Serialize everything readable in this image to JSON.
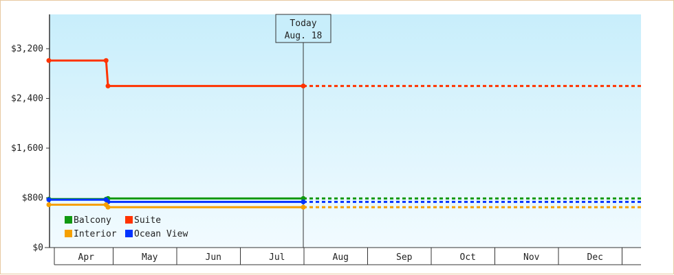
{
  "chart_data": {
    "type": "line",
    "title": "",
    "xlabel": "",
    "ylabel": "",
    "ylim": [
      0,
      4000
    ],
    "y_ticks": [
      {
        "value": 0,
        "label": "$0"
      },
      {
        "value": 800,
        "label": "$800"
      },
      {
        "value": 1600,
        "label": "$1,600"
      },
      {
        "value": 2400,
        "label": "$2,400"
      },
      {
        "value": 3200,
        "label": "$3,200"
      }
    ],
    "x_ticks": [
      "Apr",
      "May",
      "Jun",
      "Jul",
      "Aug",
      "Sep",
      "Oct",
      "Nov",
      "Dec"
    ],
    "today": {
      "line1": "Today",
      "line2": "Aug. 18",
      "month_pos": 4.0
    },
    "series": [
      {
        "name": "Suite",
        "color": "#ff3300",
        "points": [
          {
            "m": 0.0,
            "v": 3010
          },
          {
            "m": 0.9,
            "v": 3010
          },
          {
            "m": 0.93,
            "v": 2600
          },
          {
            "m": 4.0,
            "v": 2600
          }
        ],
        "projected": 2600
      },
      {
        "name": "Balcony",
        "color": "#119911",
        "points": [
          {
            "m": 0.0,
            "v": 780
          },
          {
            "m": 0.9,
            "v": 780
          },
          {
            "m": 0.93,
            "v": 790
          },
          {
            "m": 4.0,
            "v": 790
          }
        ],
        "projected": 790
      },
      {
        "name": "Ocean View",
        "color": "#0033ff",
        "points": [
          {
            "m": 0.0,
            "v": 770
          },
          {
            "m": 0.9,
            "v": 770
          },
          {
            "m": 0.93,
            "v": 735
          },
          {
            "m": 4.0,
            "v": 735
          }
        ],
        "projected": 735
      },
      {
        "name": "Interior",
        "color": "#f5a000",
        "points": [
          {
            "m": 0.0,
            "v": 690
          },
          {
            "m": 0.9,
            "v": 690
          },
          {
            "m": 0.93,
            "v": 650
          },
          {
            "m": 4.0,
            "v": 650
          }
        ],
        "projected": 650
      }
    ],
    "legend": {
      "placement": "bottom-left",
      "entries": [
        {
          "name": "Balcony",
          "color": "#119911"
        },
        {
          "name": "Suite",
          "color": "#ff3300"
        },
        {
          "name": "Interior",
          "color": "#f5a000"
        },
        {
          "name": "Ocean View",
          "color": "#0033ff"
        }
      ]
    }
  }
}
